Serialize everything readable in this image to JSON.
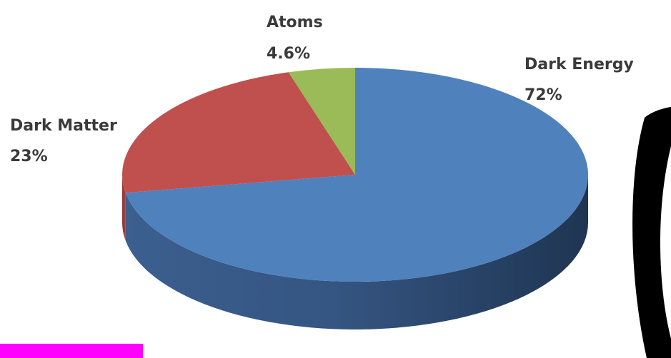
{
  "chart_data": {
    "type": "pie",
    "style": "3d",
    "title": "",
    "slices": [
      {
        "name": "Dark Energy",
        "value": 72,
        "value_label": "72%",
        "color": "#4f81bd"
      },
      {
        "name": "Dark Matter",
        "value": 23,
        "value_label": "23%",
        "color": "#c0504d"
      },
      {
        "name": "Atoms",
        "value": 4.6,
        "value_label": "4.6%",
        "color": "#9bbb59"
      }
    ]
  },
  "decor": {
    "bar_color": "#ff00ff"
  }
}
